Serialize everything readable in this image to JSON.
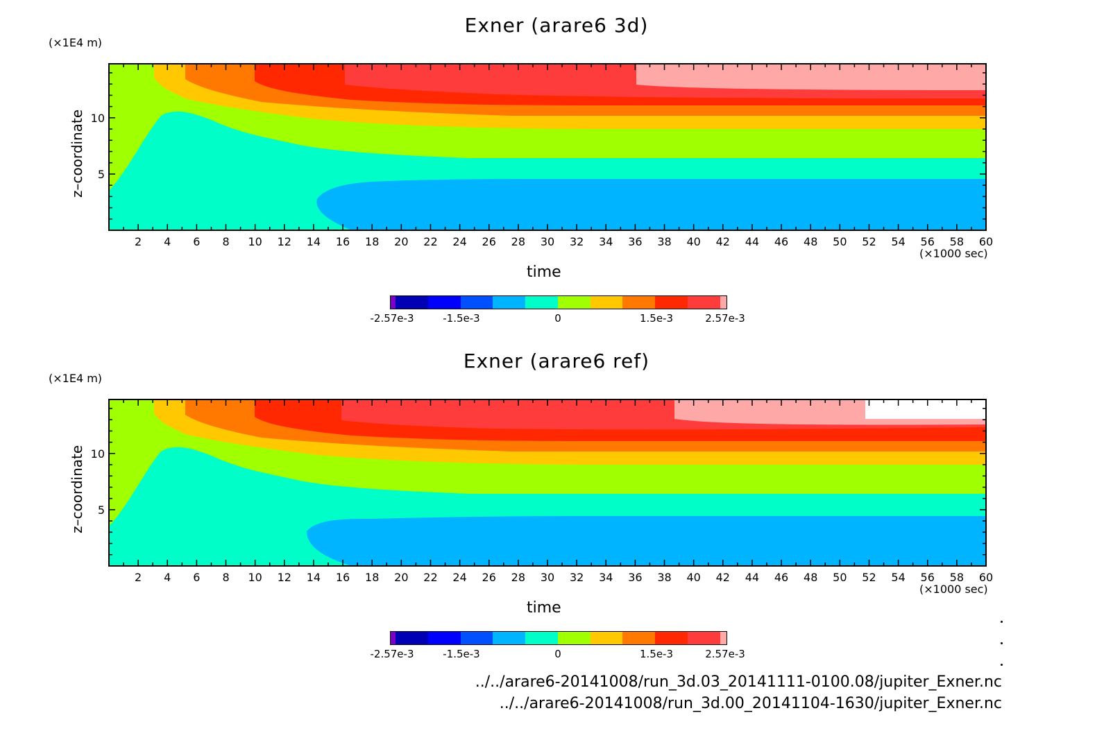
{
  "chart_data": [
    {
      "type": "heatmap",
      "title": "Exner (arare6 3d)",
      "xlabel": "time",
      "xunit": "(×1000 sec)",
      "ylabel": "z–coordinate",
      "yunit": "(×1E4 m)",
      "xlim": [
        0,
        60
      ],
      "ylim": [
        0,
        14.8
      ],
      "xticks": [
        2,
        4,
        6,
        8,
        10,
        12,
        14,
        16,
        18,
        20,
        22,
        24,
        26,
        28,
        30,
        32,
        34,
        36,
        38,
        40,
        42,
        44,
        46,
        48,
        50,
        52,
        54,
        56,
        58,
        60
      ],
      "yticks": [
        5,
        10
      ],
      "colorbar": {
        "range": [
          -0.00257,
          0.00257
        ],
        "labels": [
          "-2.57e-3",
          "-1.5e-3",
          "0",
          "1.5e-3",
          "2.57e-3"
        ]
      }
    },
    {
      "type": "heatmap",
      "title": "Exner (arare6 ref)",
      "xlabel": "time",
      "xunit": "(×1000 sec)",
      "ylabel": "z–coordinate",
      "yunit": "(×1E4 m)",
      "xlim": [
        0,
        60
      ],
      "ylim": [
        0,
        14.8
      ],
      "xticks": [
        2,
        4,
        6,
        8,
        10,
        12,
        14,
        16,
        18,
        20,
        22,
        24,
        26,
        28,
        30,
        32,
        34,
        36,
        38,
        40,
        42,
        44,
        46,
        48,
        50,
        52,
        54,
        56,
        58,
        60
      ],
      "yticks": [
        5,
        10
      ],
      "colorbar": {
        "range": [
          -0.00257,
          0.00257
        ],
        "labels": [
          "-2.57e-3",
          "-1.5e-3",
          "0",
          "1.5e-3",
          "2.57e-3"
        ]
      }
    }
  ],
  "colors": {
    "bins": [
      "#7a00c8",
      "#0000b4",
      "#0000ff",
      "#0050ff",
      "#00b4ff",
      "#00ffc8",
      "#a0ff00",
      "#ffc800",
      "#ff7800",
      "#ff2800",
      "#ff3c3c",
      "#ffa8a8",
      "#ffffff"
    ]
  },
  "footer": {
    "path1": "../../arare6-20141008/run_3d.03_20141111-0100.08/jupiter_Exner.nc",
    "path2": "../../arare6-20141008/run_3d.00_20141104-1630/jupiter_Exner.nc"
  }
}
